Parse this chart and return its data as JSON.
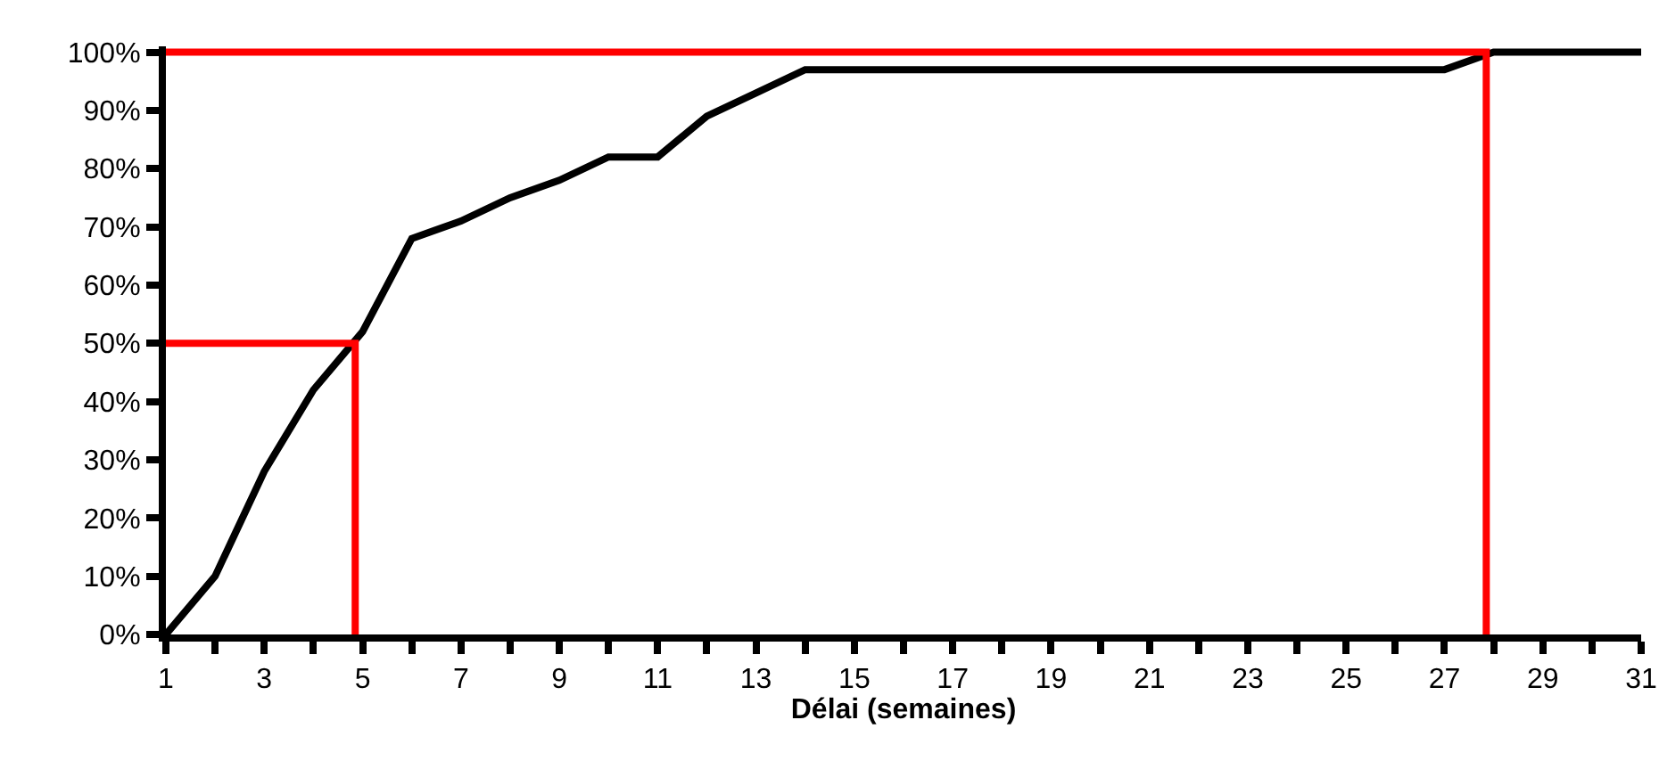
{
  "chart_data": {
    "type": "line",
    "xlabel": "Délai (semaines)",
    "xlim": [
      1,
      31
    ],
    "xticks": [
      1,
      {
        "value": 2,
        "label": null
      },
      3,
      {
        "value": 4,
        "label": null
      },
      5,
      {
        "value": 6,
        "label": null
      },
      7,
      {
        "value": 8,
        "label": null
      },
      9,
      {
        "value": 10,
        "label": null
      },
      11,
      {
        "value": 12,
        "label": null
      },
      13,
      {
        "value": 14,
        "label": null
      },
      15,
      {
        "value": 16,
        "label": null
      },
      17,
      {
        "value": 18,
        "label": null
      },
      19,
      {
        "value": 20,
        "label": null
      },
      21,
      {
        "value": 22,
        "label": null
      },
      23,
      {
        "value": 24,
        "label": null
      },
      25,
      {
        "value": 26,
        "label": null
      },
      27,
      {
        "value": 28,
        "label": null
      },
      29,
      {
        "value": 30,
        "label": null
      },
      31
    ],
    "ylim": [
      0,
      101
    ],
    "yticks": [
      {
        "value": 0,
        "label": "0%"
      },
      {
        "value": 10,
        "label": "10%"
      },
      {
        "value": 20,
        "label": "20%"
      },
      {
        "value": 30,
        "label": "30%"
      },
      {
        "value": 40,
        "label": "40%"
      },
      {
        "value": 50,
        "label": "50%"
      },
      {
        "value": 60,
        "label": "60%"
      },
      {
        "value": 70,
        "label": "70%"
      },
      {
        "value": 80,
        "label": "80%"
      },
      {
        "value": 90,
        "label": "90%"
      },
      {
        "value": 100,
        "label": "100%"
      }
    ],
    "grid": false,
    "marker": "none",
    "line_style": "solid",
    "series": [
      {
        "color": "#000000",
        "x": [
          1,
          2,
          3,
          4,
          5,
          6,
          7,
          8,
          9,
          10,
          11,
          12,
          13,
          14,
          15,
          16,
          17,
          18,
          19,
          20,
          21,
          22,
          23,
          24,
          25,
          26,
          27,
          28,
          29,
          30,
          31
        ],
        "values": [
          0,
          10,
          28,
          42,
          52,
          68,
          71,
          75,
          78,
          82,
          82,
          89,
          93,
          97,
          97,
          97,
          97,
          97,
          97,
          97,
          97,
          97,
          97,
          97,
          97,
          97,
          97,
          100,
          100,
          100,
          100
        ]
      },
      {
        "color": "#ff0000",
        "x": [
          1,
          4.85,
          4.85
        ],
        "values": [
          50,
          50,
          0
        ]
      },
      {
        "color": "#ff0000",
        "x": [
          1,
          27.85,
          27.85
        ],
        "values": [
          100,
          100,
          0
        ]
      }
    ]
  }
}
